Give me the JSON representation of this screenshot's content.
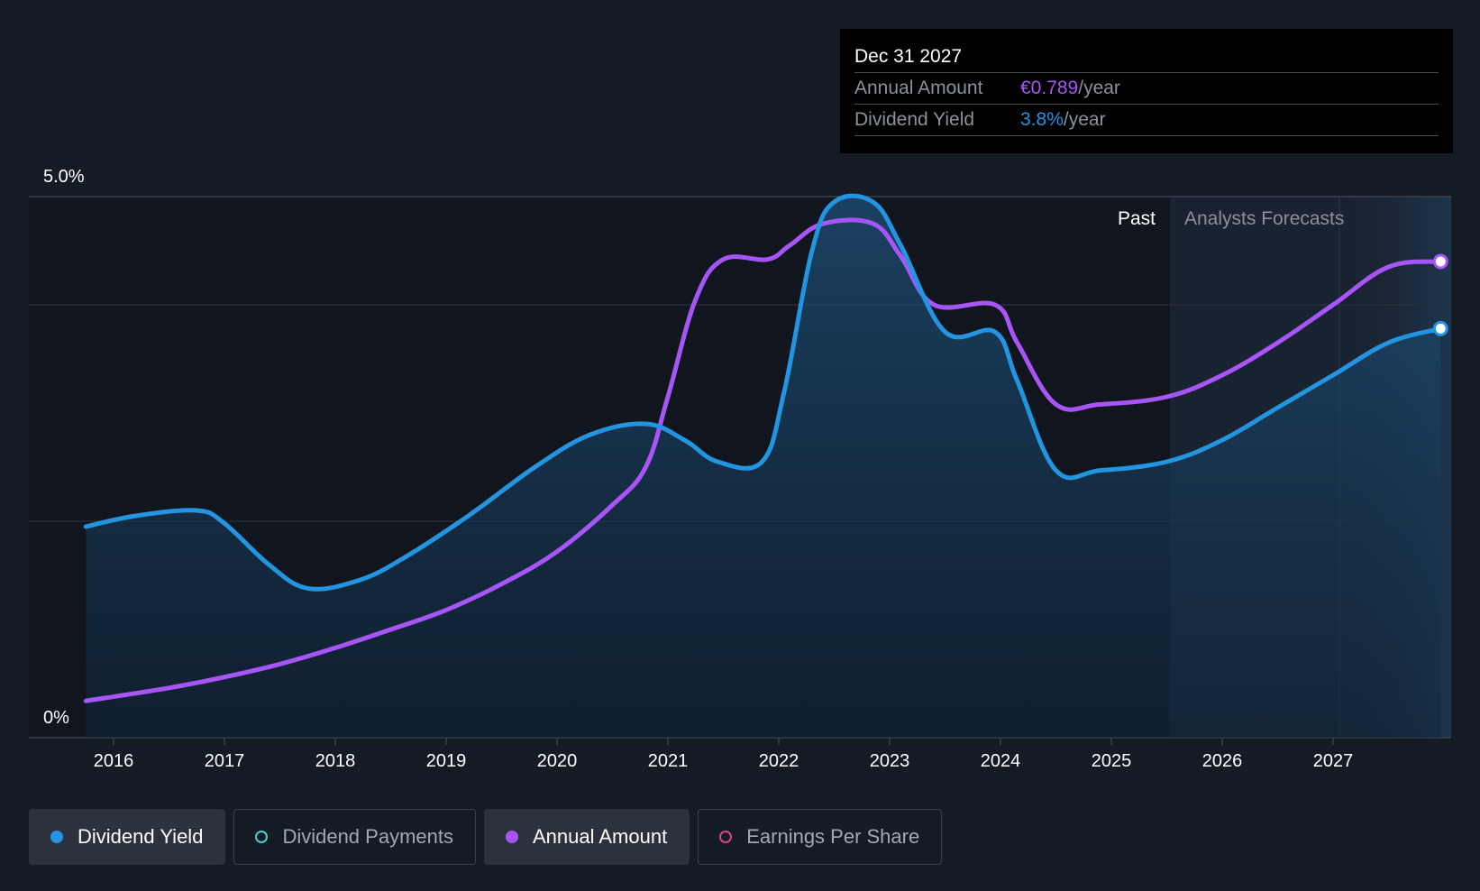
{
  "chart_data": {
    "type": "line",
    "y_axis": {
      "min_label": "0%",
      "max_label": "5.0%",
      "ylim": [
        0,
        5.0
      ]
    },
    "x_ticks": [
      "2016",
      "2017",
      "2018",
      "2019",
      "2020",
      "2021",
      "2022",
      "2023",
      "2024",
      "2025",
      "2026",
      "2027"
    ],
    "sections": {
      "past_label": "Past",
      "forecast_label": "Analysts Forecasts"
    },
    "series": [
      {
        "name": "Dividend Yield",
        "color": "#2394df",
        "unit": "%",
        "points": [
          [
            2015.75,
            1.95
          ],
          [
            2016.2,
            2.05
          ],
          [
            2016.75,
            2.1
          ],
          [
            2017.0,
            1.98
          ],
          [
            2017.4,
            1.6
          ],
          [
            2017.75,
            1.38
          ],
          [
            2018.2,
            1.45
          ],
          [
            2018.6,
            1.65
          ],
          [
            2019.2,
            2.05
          ],
          [
            2019.8,
            2.5
          ],
          [
            2020.3,
            2.8
          ],
          [
            2020.8,
            2.9
          ],
          [
            2021.15,
            2.75
          ],
          [
            2021.45,
            2.55
          ],
          [
            2021.85,
            2.55
          ],
          [
            2022.05,
            3.2
          ],
          [
            2022.3,
            4.5
          ],
          [
            2022.5,
            4.95
          ],
          [
            2022.85,
            4.95
          ],
          [
            2023.1,
            4.55
          ],
          [
            2023.5,
            3.75
          ],
          [
            2023.95,
            3.75
          ],
          [
            2024.15,
            3.3
          ],
          [
            2024.5,
            2.47
          ],
          [
            2024.9,
            2.47
          ],
          [
            2025.5,
            2.55
          ],
          [
            2026.0,
            2.75
          ],
          [
            2026.5,
            3.05
          ],
          [
            2027.0,
            3.35
          ],
          [
            2027.5,
            3.65
          ],
          [
            2027.97,
            3.78
          ]
        ]
      },
      {
        "name": "Annual Amount",
        "color": "#a855f7",
        "points": [
          [
            2015.75,
            0.34
          ],
          [
            2016.5,
            0.46
          ],
          [
            2017.0,
            0.56
          ],
          [
            2017.5,
            0.68
          ],
          [
            2018.0,
            0.83
          ],
          [
            2018.5,
            1.0
          ],
          [
            2019.0,
            1.18
          ],
          [
            2019.5,
            1.42
          ],
          [
            2020.0,
            1.72
          ],
          [
            2020.5,
            2.15
          ],
          [
            2020.8,
            2.5
          ],
          [
            2021.0,
            3.15
          ],
          [
            2021.25,
            4.05
          ],
          [
            2021.5,
            4.42
          ],
          [
            2021.9,
            4.42
          ],
          [
            2022.1,
            4.55
          ],
          [
            2022.4,
            4.75
          ],
          [
            2022.85,
            4.75
          ],
          [
            2023.1,
            4.45
          ],
          [
            2023.4,
            4.0
          ],
          [
            2023.95,
            4.0
          ],
          [
            2024.15,
            3.65
          ],
          [
            2024.5,
            3.08
          ],
          [
            2024.9,
            3.08
          ],
          [
            2025.5,
            3.15
          ],
          [
            2026.0,
            3.35
          ],
          [
            2026.5,
            3.65
          ],
          [
            2027.0,
            4.0
          ],
          [
            2027.5,
            4.35
          ],
          [
            2027.97,
            4.4
          ]
        ]
      }
    ]
  },
  "tooltip": {
    "date": "Dec 31 2027",
    "rows": [
      {
        "key": "Annual Amount",
        "value": "€0.789",
        "unit": "/year"
      },
      {
        "key": "Dividend Yield",
        "value": "3.8%",
        "unit": "/year"
      }
    ]
  },
  "legend": [
    {
      "label": "Dividend Yield",
      "color": "#2394df",
      "active": true,
      "filled": true
    },
    {
      "label": "Dividend Payments",
      "color": "#4ecdc4",
      "active": false,
      "filled": false
    },
    {
      "label": "Annual Amount",
      "color": "#a855f7",
      "active": true,
      "filled": true
    },
    {
      "label": "Earnings Per Share",
      "color": "#d6457d",
      "active": false,
      "filled": false
    }
  ]
}
